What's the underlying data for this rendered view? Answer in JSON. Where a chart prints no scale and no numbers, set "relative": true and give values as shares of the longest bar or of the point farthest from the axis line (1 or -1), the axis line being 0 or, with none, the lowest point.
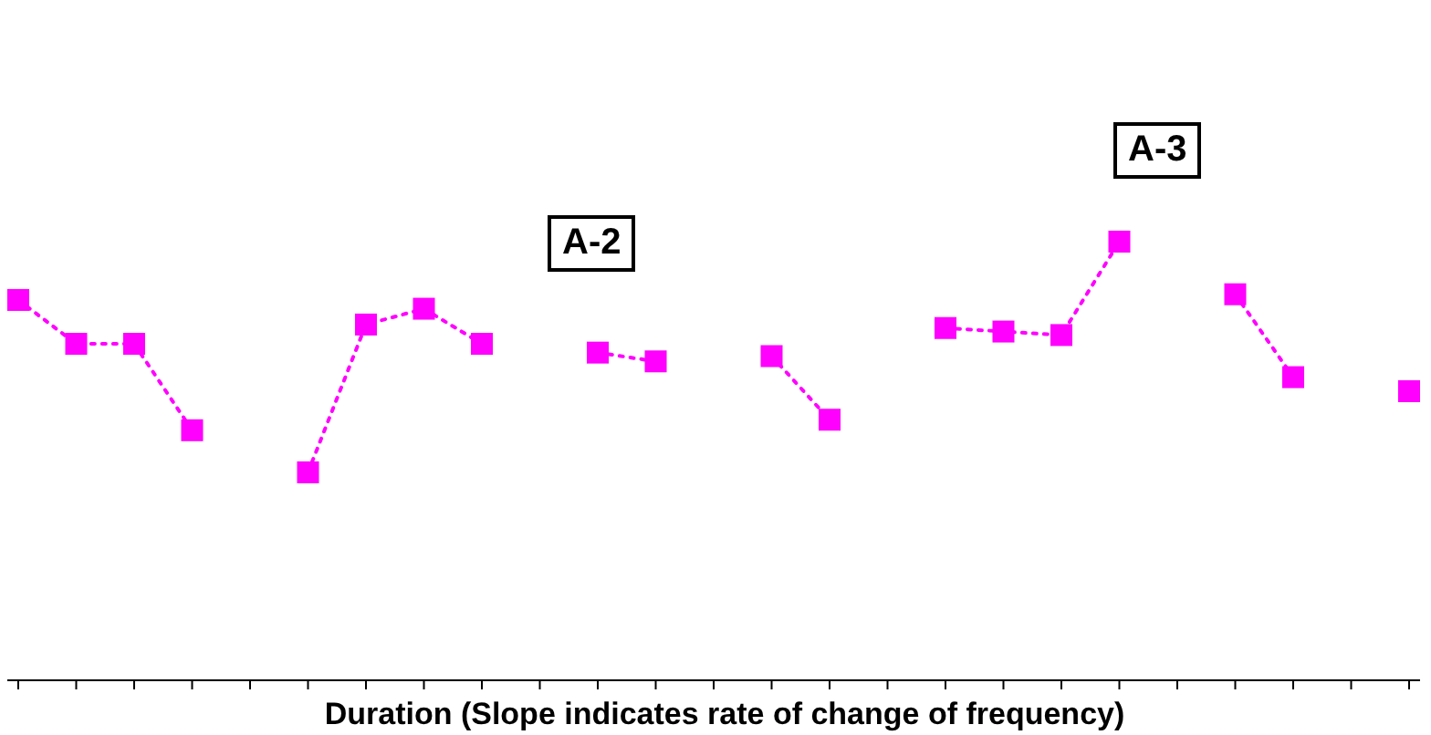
{
  "chart_data": {
    "type": "line",
    "relative": true,
    "xlabel": "Duration (Slope indicates rate of change of frequency)",
    "annotations": [
      "A-2",
      "A-3"
    ],
    "grid": false,
    "marker": "square",
    "line_style": "dotted",
    "categories": [
      null,
      null,
      null,
      null,
      null,
      null,
      null,
      null,
      null,
      null,
      null,
      null,
      null,
      null,
      null,
      null,
      null,
      null,
      null,
      null,
      null,
      null,
      null,
      null,
      null
    ],
    "series": [
      {
        "color": "#ff00ff",
        "values": [
          0.867,
          0.767,
          0.767,
          0.57,
          null,
          null,
          null,
          null,
          null,
          null,
          null,
          null,
          null,
          null,
          null,
          null,
          null,
          null,
          null,
          null,
          null,
          null,
          null,
          null,
          null
        ]
      },
      {
        "color": "#ff00ff",
        "values": [
          null,
          null,
          null,
          null,
          null,
          0.474,
          0.811,
          0.847,
          0.767,
          null,
          null,
          null,
          null,
          null,
          null,
          null,
          null,
          null,
          null,
          null,
          null,
          null,
          null,
          null,
          null
        ]
      },
      {
        "color": "#ff00ff",
        "values": [
          null,
          null,
          null,
          null,
          null,
          null,
          null,
          null,
          null,
          null,
          0.747,
          0.727,
          null,
          null,
          null,
          null,
          null,
          null,
          null,
          null,
          null,
          null,
          null,
          null,
          null
        ]
      },
      {
        "color": "#ff00ff",
        "values": [
          null,
          null,
          null,
          null,
          null,
          null,
          null,
          null,
          null,
          null,
          null,
          null,
          null,
          0.739,
          0.594,
          null,
          null,
          null,
          null,
          null,
          null,
          null,
          null,
          null,
          null
        ]
      },
      {
        "color": "#ff00ff",
        "values": [
          null,
          null,
          null,
          null,
          null,
          null,
          null,
          null,
          null,
          null,
          null,
          null,
          null,
          null,
          null,
          null,
          0.803,
          0.795,
          0.787,
          1,
          null,
          null,
          null,
          null,
          null
        ]
      },
      {
        "color": "#ff00ff",
        "values": [
          null,
          null,
          null,
          null,
          null,
          null,
          null,
          null,
          null,
          null,
          null,
          null,
          null,
          null,
          null,
          null,
          null,
          null,
          null,
          null,
          null,
          0.88,
          0.691,
          null,
          null
        ]
      },
      {
        "color": "#ff00ff",
        "values": [
          null,
          null,
          null,
          null,
          null,
          null,
          null,
          null,
          null,
          null,
          null,
          null,
          null,
          null,
          null,
          null,
          null,
          null,
          null,
          null,
          null,
          null,
          null,
          null,
          0.659
        ]
      }
    ]
  }
}
